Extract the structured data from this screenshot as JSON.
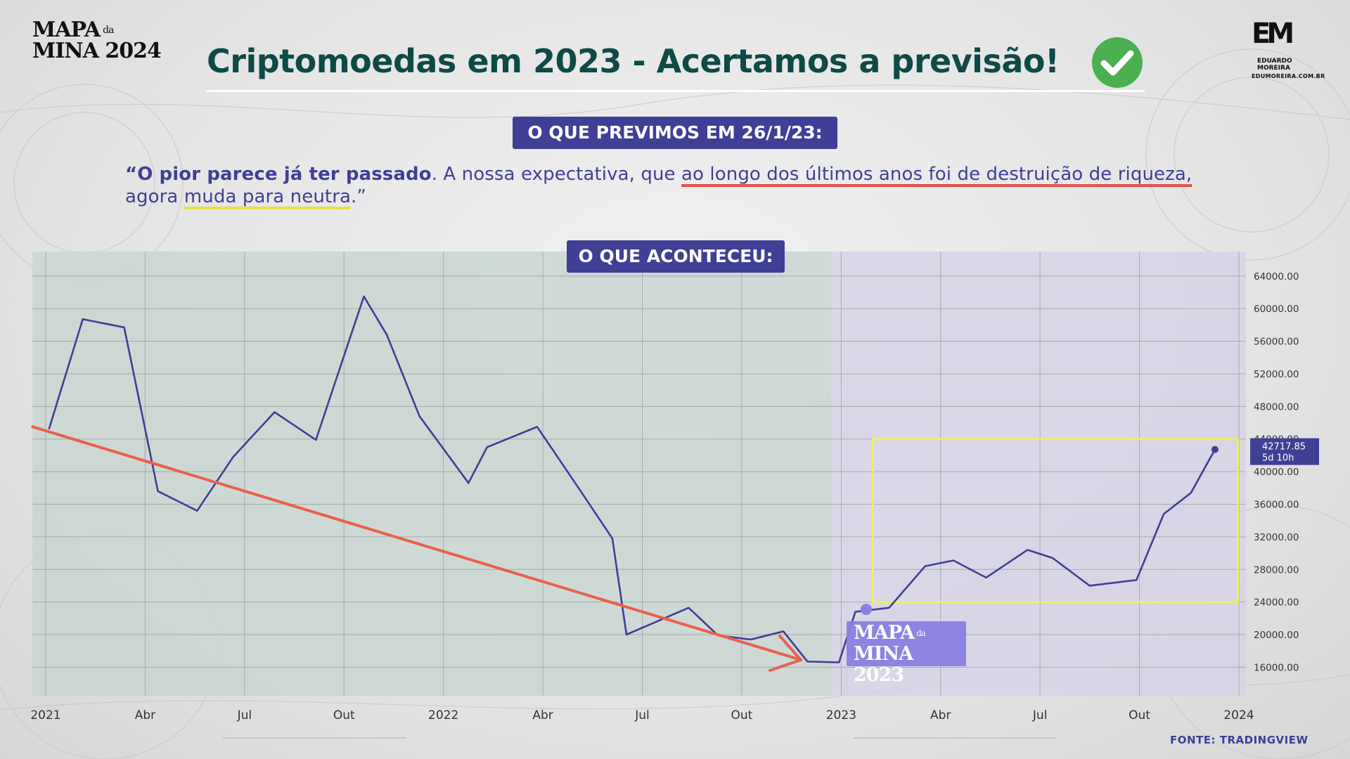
{
  "header": {
    "logo_left_line1": "MAPA",
    "logo_left_da": "da",
    "logo_left_line2": "MINA 2024",
    "title": "Criptomoedas em 2023 - Acertamos a previsão!",
    "logo_right_mark": "EM",
    "logo_right_name_1": "EDUARDO",
    "logo_right_name_2": "MOREIRA",
    "logo_right_site": "EDUMOREIRA.COM.BR",
    "check_icon": "check-circle-icon",
    "check_color": "#4caf50"
  },
  "prediction": {
    "label": "O QUE PREVIMOS EM 26/1/23:",
    "quote_open": "“",
    "quote_bold": "O pior parece já ter passado",
    "quote_mid": ". A nossa expectativa, que ",
    "quote_red_underline": "ao longo dos últimos anos foi de destruição de riqueza,",
    "quote_line2_start": "agora ",
    "quote_yellow_underline": "muda para neutra",
    "quote_end": ".”"
  },
  "chart_header": {
    "label": "O QUE ACONTECEU:"
  },
  "watermark": {
    "line1": "MAPA",
    "da": "da",
    "line2": "MINA 2023"
  },
  "footer": {
    "source": "FONTE: TRADINGVIEW"
  },
  "colors": {
    "line": "#3f3f96",
    "trend_arrow": "#e8604c",
    "highlight_box": "#eef05a",
    "shade_2021_2022": "#c9d6d2",
    "shade_2023": "#d6d4e6",
    "price_tag": "#3f3f96"
  },
  "chart_data": {
    "type": "line",
    "x_start": "2021-01",
    "x_end": "2024-01",
    "x_tick_labels": [
      "2021",
      "Abr",
      "Jul",
      "Out",
      "2022",
      "Abr",
      "Jul",
      "Out",
      "2023",
      "Abr",
      "Jul",
      "Out",
      "2024"
    ],
    "y_tick_labels": [
      "64000.00",
      "60000.00",
      "56000.00",
      "52000.00",
      "48000.00",
      "44000.00",
      "40000.00",
      "36000.00",
      "32000.00",
      "28000.00",
      "24000.00",
      "20000.00",
      "16000.00"
    ],
    "ylim": [
      12500,
      67000
    ],
    "grid": true,
    "series": [
      {
        "x": [
          "2021-01-04",
          "2021-02-04",
          "2021-03-14",
          "2021-04-14",
          "2021-05-20",
          "2021-06-22",
          "2021-07-30",
          "2021-09-06",
          "2021-10-20",
          "2021-11-10",
          "2021-12-10",
          "2022-01-24",
          "2022-02-10",
          "2022-03-28",
          "2022-05-05",
          "2022-06-05",
          "2022-06-18",
          "2022-08-14",
          "2022-09-10",
          "2022-10-10",
          "2022-11-09",
          "2022-12-01",
          "2022-12-30",
          "2023-01-14",
          "2023-02-14",
          "2023-03-19",
          "2023-04-14",
          "2023-05-14",
          "2023-06-21",
          "2023-07-14",
          "2023-08-17",
          "2023-09-29",
          "2023-10-24",
          "2023-11-18",
          "2023-12-10"
        ],
        "y": [
          45200,
          58700,
          57700,
          37600,
          35200,
          41800,
          47300,
          43900,
          61500,
          56800,
          46800,
          38600,
          43000,
          45500,
          38000,
          31800,
          20000,
          23300,
          19900,
          19400,
          20400,
          16700,
          16600,
          22800,
          23300,
          28400,
          29100,
          27000,
          30400,
          29400,
          26000,
          26700,
          34800,
          37400,
          42717.85
        ]
      }
    ],
    "last_value_label": "42717.85",
    "last_value_sublabel": "5d 10h",
    "highlight_start_y": 23100,
    "trend_arrow_from": {
      "x": "2020-12-20",
      "y": 45500
    },
    "trend_arrow_to": {
      "x": "2022-11-25",
      "y": 16900
    },
    "highlight_box": {
      "x0": "2023-01-30",
      "x1": "2023-12-31",
      "y0": 24000,
      "y1": 44000
    }
  }
}
